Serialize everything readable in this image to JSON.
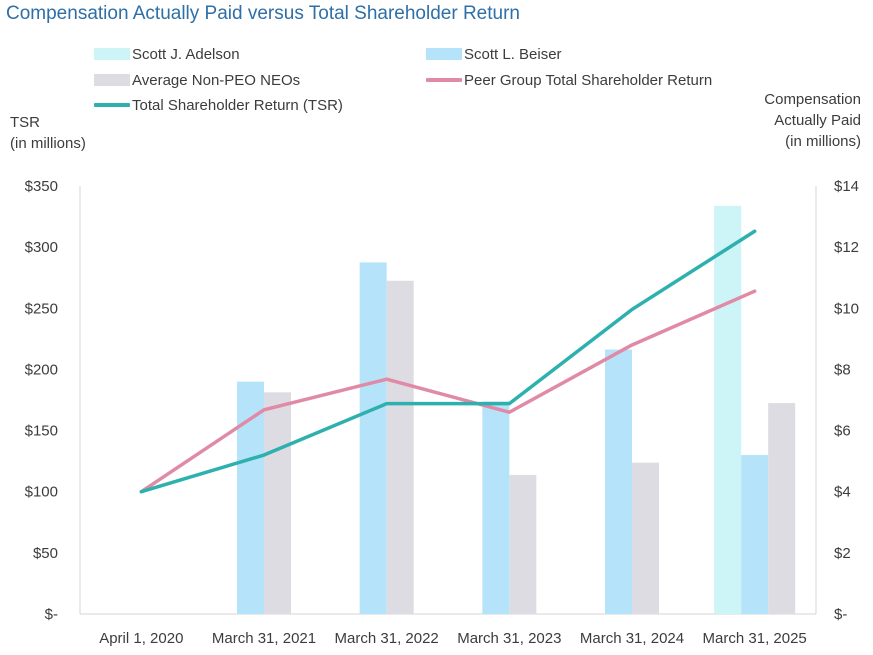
{
  "chart_data": {
    "type": "bar",
    "title": "Compensation Actually Paid versus Total Shareholder Return",
    "categories": [
      "April 1, 2020",
      "March 31, 2021",
      "March 31, 2022",
      "March 31, 2023",
      "March 31, 2024",
      "March 31, 2025"
    ],
    "left_axis": {
      "label_lines": [
        "TSR",
        "(in millions)"
      ],
      "ticks": [
        "$-",
        "$50",
        "$100",
        "$150",
        "$200",
        "$250",
        "$300",
        "$350"
      ],
      "ylim": [
        0,
        350
      ]
    },
    "right_axis": {
      "label_lines": [
        "Compensation",
        "Actually Paid",
        "(in millions)"
      ],
      "ticks": [
        "$-",
        "$2",
        "$4",
        "$6",
        "$8",
        "$10",
        "$12",
        "$14"
      ],
      "ylim": [
        0,
        14
      ]
    },
    "bar_series": [
      {
        "name": "Scott J. Adelson",
        "color": "#cdf4f6",
        "axis": "right",
        "values": [
          null,
          null,
          null,
          null,
          null,
          13.35
        ]
      },
      {
        "name": "Scott L. Beiser",
        "color": "#b5e3fa",
        "axis": "right",
        "values": [
          null,
          7.6,
          11.5,
          6.95,
          8.65,
          5.2
        ]
      },
      {
        "name": "Average Non-PEO NEOs",
        "color": "#dcdce2",
        "axis": "right",
        "values": [
          null,
          7.25,
          10.9,
          4.55,
          4.95,
          6.9
        ]
      }
    ],
    "line_series": [
      {
        "name": "Peer Group Total Shareholder Return",
        "color": "#e08aa6",
        "axis": "left",
        "values": [
          100,
          167,
          192,
          165,
          220,
          264
        ]
      },
      {
        "name": "Total Shareholder Return (TSR)",
        "color": "#2db0ae",
        "axis": "left",
        "values": [
          100,
          130,
          172,
          172,
          249,
          313
        ]
      }
    ],
    "legend": [
      {
        "label": "Scott J. Adelson",
        "kind": "bar",
        "color": "#cdf4f6"
      },
      {
        "label": "Scott L. Beiser",
        "kind": "bar",
        "color": "#b5e3fa"
      },
      {
        "label": "Average Non-PEO NEOs",
        "kind": "bar",
        "color": "#dcdce2"
      },
      {
        "label": "Peer Group Total Shareholder Return",
        "kind": "line",
        "color": "#e08aa6"
      },
      {
        "label": "Total Shareholder Return (TSR)",
        "kind": "line",
        "color": "#2db0ae"
      }
    ],
    "legend_position": "top",
    "grid": false
  }
}
